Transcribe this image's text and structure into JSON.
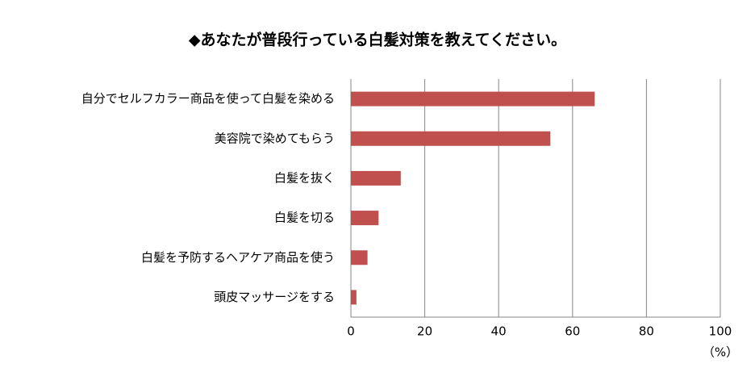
{
  "chart_data": {
    "type": "bar",
    "orientation": "horizontal",
    "title": "◆あなたが普段行っている白髪対策を教えてください。",
    "x_label": "（%）",
    "categories": [
      "自分でセルフカラー商品を使って白髪を染める",
      "美容院で染めてもらう",
      "白髪を抜く",
      "白髪を切る",
      "白髪を予防するヘアケア商品を使う",
      "頭皮マッサージをする"
    ],
    "values": [
      66,
      54,
      13.5,
      7.5,
      4.5,
      1.5
    ],
    "color": "#c0504d",
    "xlim": [
      0,
      100
    ],
    "xticks": [
      0,
      20,
      40,
      60,
      80,
      100
    ],
    "grid": true
  }
}
